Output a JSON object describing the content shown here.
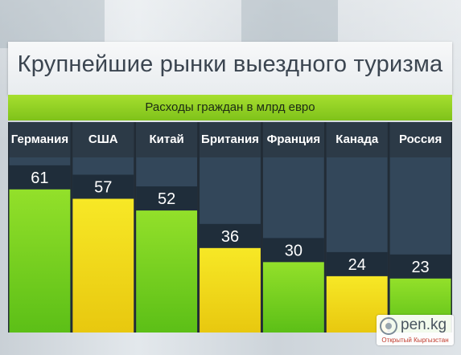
{
  "header": {
    "title": "Крупнейшие рынки выездного туризма",
    "subtitle": "Расходы граждан в млрд евро"
  },
  "colors": {
    "accent_green": "#80d21e",
    "accent_yellow": "#f3e21a",
    "panel_dark": "#222c36",
    "column_band": "#33475a",
    "header_band": "#2c3a47"
  },
  "watermark": {
    "name": "pen.kg",
    "tagline": "Открытый Кыргызстан",
    "icon": "camera-lens-icon"
  },
  "chart_data": {
    "type": "bar",
    "title": "Крупнейшие рынки выездного туризма",
    "subtitle": "Расходы граждан в млрд евро",
    "categories": [
      "Германия",
      "США",
      "Китай",
      "Британия",
      "Франция",
      "Канада",
      "Россия"
    ],
    "values": [
      61,
      57,
      52,
      36,
      30,
      24,
      23
    ],
    "bar_colors": [
      "green",
      "yellow",
      "green",
      "yellow",
      "green",
      "yellow",
      "green"
    ],
    "ylim": [
      0,
      76
    ],
    "grid": false,
    "legend": "none"
  }
}
